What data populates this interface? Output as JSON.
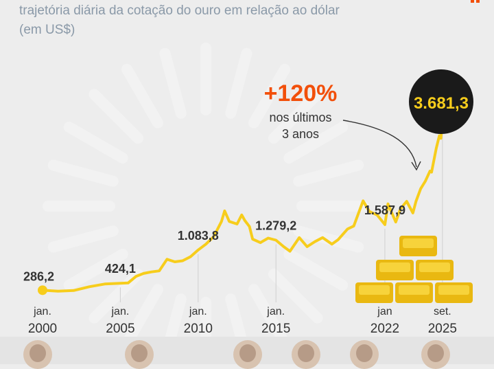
{
  "subtitle_line1": "trajetória diária da cotação do ouro em relação ao dólar",
  "subtitle_line2": "(em US$)",
  "highlight": {
    "pct": "+120%",
    "line1": "nos últimos",
    "line2": "3 anos"
  },
  "final_value_label": "3.681,3",
  "colors": {
    "line": "#f7cd1c",
    "highlight": "#f24f0a",
    "badge": "#1a1a1a",
    "badge_text": "#f7cd1c",
    "text": "#333333"
  },
  "chart_data": {
    "type": "line",
    "title": "",
    "xlabel": "",
    "ylabel": "",
    "xlim": [
      2000.0,
      2025.75
    ],
    "ylim": [
      250,
      3700
    ],
    "x_ticks": [
      {
        "x": 2000.0,
        "line1": "jan.",
        "line2": "2000"
      },
      {
        "x": 2005.0,
        "line1": "jan.",
        "line2": "2005"
      },
      {
        "x": 2010.0,
        "line1": "jan.",
        "line2": "2010"
      },
      {
        "x": 2015.0,
        "line1": "jan.",
        "line2": "2015"
      },
      {
        "x": 2022.0,
        "line1": "jan",
        "line2": "2022"
      },
      {
        "x": 2025.7,
        "line1": "set.",
        "line2": "2025"
      }
    ],
    "annotations": [
      {
        "x": 2000.0,
        "y": 286.2,
        "label": "286,2"
      },
      {
        "x": 2005.0,
        "y": 424.1,
        "label": "424,1"
      },
      {
        "x": 2010.0,
        "y": 1083.8,
        "label": "1.083,8"
      },
      {
        "x": 2015.0,
        "y": 1279.2,
        "label": "1.279,2"
      },
      {
        "x": 2022.0,
        "y": 1587.9,
        "label": "1.587,9"
      },
      {
        "x": 2025.7,
        "y": 3681.3,
        "label": "3.681,3"
      }
    ],
    "series": [
      {
        "values": [
          [
            2000.0,
            286
          ],
          [
            2001.0,
            268
          ],
          [
            2002.0,
            280
          ],
          [
            2003.0,
            355
          ],
          [
            2004.0,
            410
          ],
          [
            2005.0,
            424
          ],
          [
            2005.5,
            430
          ],
          [
            2006.0,
            560
          ],
          [
            2006.5,
            620
          ],
          [
            2007.0,
            650
          ],
          [
            2007.5,
            670
          ],
          [
            2008.0,
            900
          ],
          [
            2008.5,
            850
          ],
          [
            2009.0,
            870
          ],
          [
            2009.5,
            950
          ],
          [
            2010.0,
            1084
          ],
          [
            2010.5,
            1200
          ],
          [
            2011.0,
            1350
          ],
          [
            2011.5,
            1650
          ],
          [
            2011.7,
            1860
          ],
          [
            2012.0,
            1650
          ],
          [
            2012.5,
            1600
          ],
          [
            2012.8,
            1780
          ],
          [
            2013.0,
            1670
          ],
          [
            2013.3,
            1550
          ],
          [
            2013.5,
            1300
          ],
          [
            2014.0,
            1230
          ],
          [
            2014.5,
            1320
          ],
          [
            2015.0,
            1279
          ],
          [
            2015.5,
            1150
          ],
          [
            2015.9,
            1060
          ],
          [
            2016.5,
            1330
          ],
          [
            2017.0,
            1150
          ],
          [
            2017.5,
            1250
          ],
          [
            2018.0,
            1330
          ],
          [
            2018.6,
            1200
          ],
          [
            2019.0,
            1290
          ],
          [
            2019.6,
            1500
          ],
          [
            2020.0,
            1560
          ],
          [
            2020.6,
            2060
          ],
          [
            2021.0,
            1850
          ],
          [
            2021.5,
            1780
          ],
          [
            2022.0,
            1588
          ],
          [
            2022.2,
            2000
          ],
          [
            2022.7,
            1640
          ],
          [
            2023.0,
            1900
          ],
          [
            2023.4,
            2050
          ],
          [
            2023.8,
            1820
          ],
          [
            2024.0,
            2050
          ],
          [
            2024.3,
            2300
          ],
          [
            2024.6,
            2450
          ],
          [
            2024.9,
            2650
          ],
          [
            2025.0,
            2630
          ],
          [
            2025.3,
            3100
          ],
          [
            2025.5,
            3350
          ],
          [
            2025.6,
            3300
          ],
          [
            2025.7,
            3681
          ]
        ]
      }
    ]
  }
}
